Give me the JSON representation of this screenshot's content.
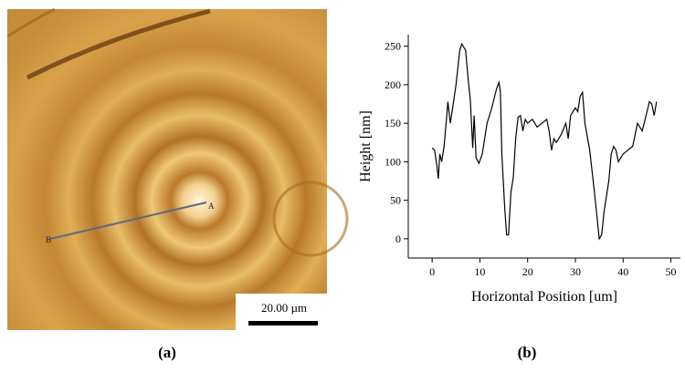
{
  "image_panel": {
    "point_a": "A",
    "point_b": "B",
    "scale_bar": "20.00 µm",
    "caption": "(a)"
  },
  "chart_data": {
    "type": "line",
    "xlabel": "Horizontal Position [um]",
    "ylabel": "Height [nm]",
    "caption": "(b)",
    "color": "#000000",
    "x": [
      0,
      0.5,
      1,
      1.3,
      1.6,
      2,
      2.5,
      3,
      3.3,
      3.8,
      4.3,
      5,
      5.8,
      6.2,
      7,
      7.5,
      8,
      8.5,
      8.8,
      9.2,
      9.8,
      10.5,
      11.5,
      12.5,
      13.5,
      14,
      14.3,
      14.6,
      15.2,
      15.6,
      16,
      16.5,
      17,
      17.5,
      18,
      18.5,
      19,
      19.5,
      20,
      21,
      22,
      23,
      24,
      24.5,
      25,
      25.5,
      26,
      27,
      28,
      28.5,
      29,
      30,
      30.5,
      31,
      31.5,
      32,
      33,
      34,
      34.5,
      35,
      35.5,
      36,
      37,
      37.5,
      38,
      38.5,
      39,
      40,
      41,
      42,
      43,
      44,
      45,
      45.5,
      46,
      46.5,
      47
    ],
    "values": [
      118,
      115,
      95,
      78,
      110,
      100,
      120,
      155,
      178,
      150,
      170,
      200,
      245,
      253,
      245,
      210,
      180,
      118,
      160,
      105,
      98,
      110,
      150,
      170,
      195,
      203,
      190,
      110,
      40,
      5,
      5,
      60,
      80,
      130,
      158,
      160,
      140,
      155,
      150,
      155,
      145,
      150,
      155,
      140,
      115,
      130,
      125,
      135,
      150,
      130,
      160,
      170,
      165,
      185,
      190,
      150,
      115,
      60,
      30,
      0,
      5,
      35,
      75,
      110,
      120,
      115,
      100,
      110,
      115,
      120,
      150,
      140,
      165,
      178,
      175,
      160,
      178
    ],
    "xlim": [
      -5,
      52
    ],
    "ylim": [
      -25,
      265
    ],
    "xticks": [
      0,
      10,
      20,
      30,
      40,
      50
    ],
    "yticks": [
      0,
      50,
      100,
      150,
      200,
      250
    ]
  }
}
